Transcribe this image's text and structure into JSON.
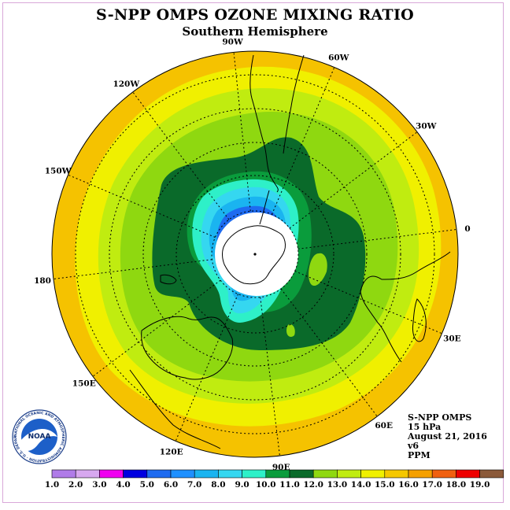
{
  "title": "S-NPP OMPS OZONE MIXING RATIO",
  "subtitle": "Southern Hemisphere",
  "info": {
    "instrument": "S-NPP OMPS",
    "level": "15 hPa",
    "date": "August 21, 2016",
    "version": "v6",
    "units": "PPM"
  },
  "longitude_labels": [
    {
      "text": "90W",
      "angle": -96
    },
    {
      "text": "60W",
      "angle": -67
    },
    {
      "text": "30W",
      "angle": -37
    },
    {
      "text": "0",
      "angle": -7
    },
    {
      "text": "30E",
      "angle": 23
    },
    {
      "text": "60E",
      "angle": 53
    },
    {
      "text": "90E",
      "angle": 83
    },
    {
      "text": "120E",
      "angle": 113
    },
    {
      "text": "150E",
      "angle": 143
    },
    {
      "text": "180",
      "angle": 173
    },
    {
      "text": "150W",
      "angle": -157
    },
    {
      "text": "120W",
      "angle": -127
    }
  ],
  "colorbar": {
    "labels": [
      "1.0",
      "2.0",
      "3.0",
      "4.0",
      "5.0",
      "6.0",
      "7.0",
      "8.0",
      "9.0",
      "10.0",
      "11.0",
      "12.0",
      "13.0",
      "14.0",
      "15.0",
      "16.0",
      "17.0",
      "18.0",
      "19.0"
    ],
    "colors": [
      "#b07ce8",
      "#d7a8ef",
      "#f000f0",
      "#0000e0",
      "#1e6bf0",
      "#1e90ff",
      "#1ab4f0",
      "#35d7f0",
      "#2ef0c8",
      "#0a9c3c",
      "#0a6a2a",
      "#8fd810",
      "#c0ec10",
      "#f0f000",
      "#f5c800",
      "#f5a000",
      "#f06010",
      "#ee0000",
      "#8b5a3a"
    ]
  },
  "logo": {
    "acronym": "NOAA",
    "ring_text": "NATIONAL OCEANIC AND ATMOSPHERIC ADMINISTRATION · U.S. DEPARTMENT OF COMMERCE ·"
  },
  "colors": {
    "ocean_outer": "#f5c200",
    "frame": "#d9a8d9"
  }
}
